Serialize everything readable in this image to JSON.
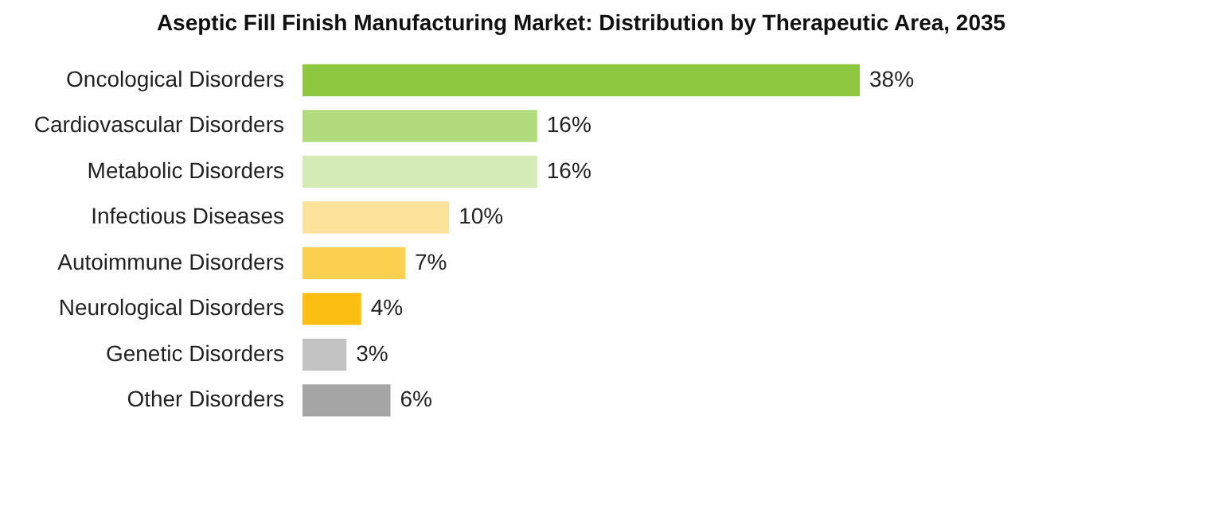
{
  "chart_data": {
    "type": "bar",
    "orientation": "horizontal",
    "title": "Aseptic Fill Finish Manufacturing Market: Distribution by Therapeutic Area, 2035",
    "categories": [
      "Oncological Disorders",
      "Cardiovascular Disorders",
      "Metabolic Disorders",
      "Infectious Diseases",
      "Autoimmune Disorders",
      "Neurological Disorders",
      "Genetic Disorders",
      "Other Disorders"
    ],
    "values": [
      38,
      16,
      16,
      10,
      7,
      4,
      3,
      6
    ],
    "colors": [
      "#8dc63f",
      "#b1db7c",
      "#d5ebb7",
      "#fde29b",
      "#fdd14f",
      "#fcbf11",
      "#c3c3c3",
      "#a5a5a5"
    ],
    "value_labels": [
      "38%",
      "16%",
      "16%",
      "10%",
      "7%",
      "4%",
      "3%",
      "6%"
    ]
  }
}
